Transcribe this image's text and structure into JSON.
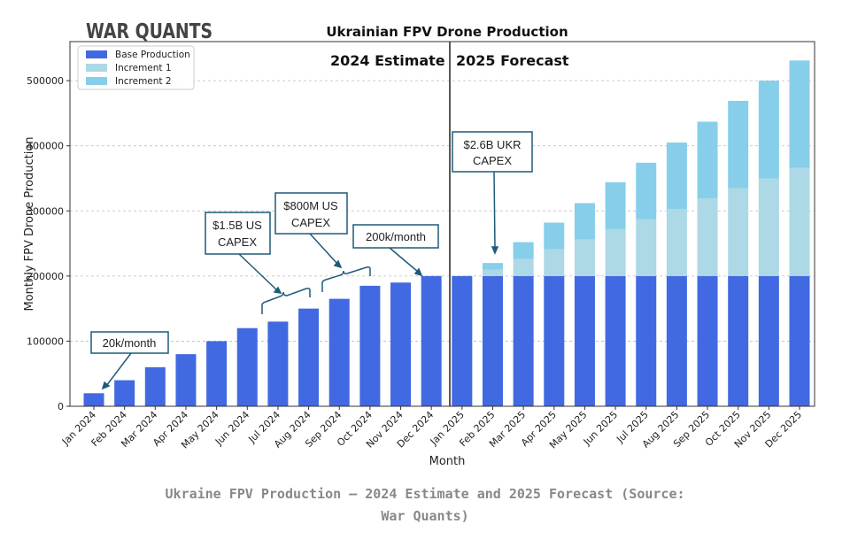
{
  "logo": "WAR QUANTS",
  "caption_lines": [
    "Ukraine FPV Production — 2024 Estimate and 2025 Forecast (Source:",
    "War Quants)"
  ],
  "chart_data": {
    "type": "bar",
    "stacked": true,
    "title": "Ukrainian FPV Drone Production",
    "xlabel": "Month",
    "ylabel": "Monthly FPV Drone Production",
    "ylim": [
      0,
      560000
    ],
    "yticks": [
      0,
      100000,
      200000,
      300000,
      400000,
      500000
    ],
    "grid": "horizontal dashed",
    "legend_position": "top-left",
    "categories": [
      "Jan 2024",
      "Feb 2024",
      "Mar 2024",
      "Apr 2024",
      "May 2024",
      "Jun 2024",
      "Jul 2024",
      "Aug 2024",
      "Sep 2024",
      "Oct 2024",
      "Nov 2024",
      "Dec 2024",
      "Jan 2025",
      "Feb 2025",
      "Mar 2025",
      "Apr 2025",
      "May 2025",
      "Jun 2025",
      "Jul 2025",
      "Aug 2025",
      "Sep 2025",
      "Oct 2025",
      "Nov 2025",
      "Dec 2025"
    ],
    "series": [
      {
        "name": "Base Production",
        "color": "#4169e1",
        "values": [
          20000,
          40000,
          60000,
          80000,
          100000,
          120000,
          130000,
          150000,
          165000,
          185000,
          190000,
          200000,
          200000,
          200000,
          200000,
          200000,
          200000,
          200000,
          200000,
          200000,
          200000,
          200000,
          200000,
          200000
        ]
      },
      {
        "name": "Increment 1",
        "color": "#add8e6",
        "values": [
          0,
          0,
          0,
          0,
          0,
          0,
          0,
          0,
          0,
          0,
          0,
          0,
          0,
          10000,
          26000,
          41000,
          56000,
          72000,
          87000,
          103000,
          119000,
          135000,
          150000,
          166000
        ]
      },
      {
        "name": "Increment 2",
        "color": "#87ceeb",
        "values": [
          0,
          0,
          0,
          0,
          0,
          0,
          0,
          0,
          0,
          0,
          0,
          0,
          0,
          10000,
          26000,
          41000,
          56000,
          72000,
          87000,
          102000,
          118000,
          134000,
          150000,
          165000
        ]
      }
    ],
    "sections": [
      "2024 Estimate",
      "2025 Forecast"
    ],
    "annotations": [
      {
        "lines": [
          "20k/month"
        ]
      },
      {
        "lines": [
          "$1.5B US",
          "CAPEX"
        ]
      },
      {
        "lines": [
          "$800M US",
          "CAPEX"
        ]
      },
      {
        "lines": [
          "200k/month"
        ]
      },
      {
        "lines": [
          "$2.6B UKR",
          "CAPEX"
        ]
      }
    ]
  }
}
